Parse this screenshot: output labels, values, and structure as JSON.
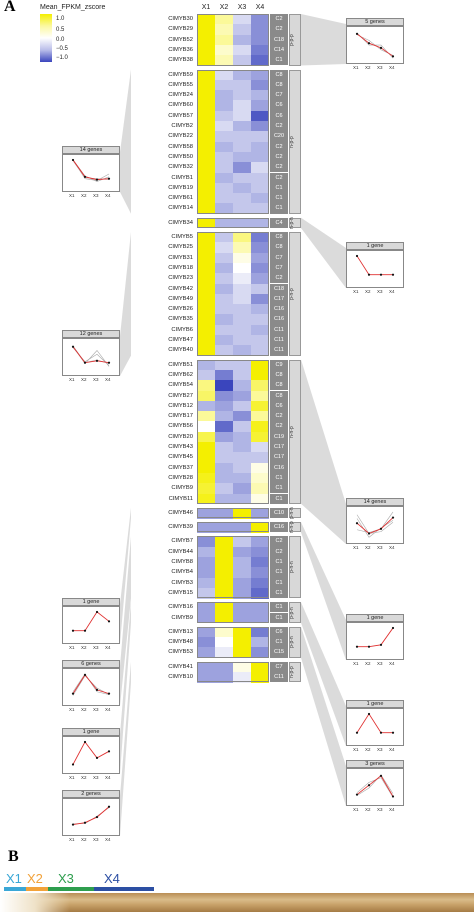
{
  "panel_a": "A",
  "panel_b": "B",
  "legend": {
    "title": "Mean_FPKM_zscore",
    "ticks": [
      "1.0",
      "0.5",
      "0.0",
      "−0.5",
      "−1.0"
    ]
  },
  "columns": [
    "X1",
    "X2",
    "X3",
    "X4"
  ],
  "colors": {
    "high": "#f4ef00",
    "mid": "#ffffff",
    "low": "#3a45bd",
    "clade_band": "#8a8a8a",
    "highlight": "#e03030"
  },
  "rows": [
    {
      "gene": "CIMYB30",
      "clade": "C2",
      "z": [
        1,
        0.4,
        -0.2,
        -0.6
      ]
    },
    {
      "gene": "CIMYB29",
      "clade": "C2",
      "z": [
        1,
        0.3,
        -0.3,
        -0.6
      ]
    },
    {
      "gene": "CIMYB52",
      "clade": "C18",
      "z": [
        1,
        0.4,
        -0.4,
        -0.6
      ]
    },
    {
      "gene": "CIMYB36",
      "clade": "C14",
      "z": [
        1,
        0.2,
        -0.2,
        -0.7
      ]
    },
    {
      "gene": "CIMYB38",
      "clade": "C1",
      "z": [
        1,
        0.3,
        -0.3,
        -0.8
      ]
    },
    {
      "gene": "CIMYB59",
      "clade": "C8",
      "z": [
        1,
        -0.2,
        -0.4,
        -0.5
      ]
    },
    {
      "gene": "CIMYB55",
      "clade": "C8",
      "z": [
        1,
        -0.3,
        -0.3,
        -0.6
      ]
    },
    {
      "gene": "CIMYB24",
      "clade": "C7",
      "z": [
        1,
        -0.4,
        -0.3,
        -0.4
      ]
    },
    {
      "gene": "CIMYB60",
      "clade": "C6",
      "z": [
        1,
        -0.4,
        -0.2,
        -0.5
      ]
    },
    {
      "gene": "CIMYB57",
      "clade": "C6",
      "z": [
        1,
        -0.3,
        -0.2,
        -0.9
      ]
    },
    {
      "gene": "CIMYB2",
      "clade": "C2",
      "z": [
        1,
        -0.2,
        -0.4,
        -0.6
      ]
    },
    {
      "gene": "CIMYB22",
      "clade": "C20",
      "z": [
        1,
        -0.3,
        -0.3,
        -0.3
      ]
    },
    {
      "gene": "CIMYB58",
      "clade": "C2",
      "z": [
        1,
        -0.4,
        -0.3,
        -0.4
      ]
    },
    {
      "gene": "CIMYB50",
      "clade": "C2",
      "z": [
        1,
        -0.3,
        -0.4,
        -0.4
      ]
    },
    {
      "gene": "CIMYB32",
      "clade": "C2",
      "z": [
        1,
        -0.3,
        -0.6,
        -0.2
      ]
    },
    {
      "gene": "CIMYB1",
      "clade": "C2",
      "z": [
        1,
        -0.4,
        -0.3,
        -0.3
      ]
    },
    {
      "gene": "CIMYB19",
      "clade": "C1",
      "z": [
        1,
        -0.3,
        -0.4,
        -0.3
      ]
    },
    {
      "gene": "CIMYB61",
      "clade": "C1",
      "z": [
        1,
        -0.3,
        -0.3,
        -0.4
      ]
    },
    {
      "gene": "CIMYB14",
      "clade": "C1",
      "z": [
        1,
        -0.4,
        -0.3,
        -0.3
      ]
    },
    {
      "gene": "CIMYB34",
      "clade": "C4",
      "z": [
        1,
        -0.4,
        -0.4,
        -0.4
      ]
    },
    {
      "gene": "CIMYB5",
      "clade": "C8",
      "z": [
        1,
        -0.3,
        0.5,
        -0.7
      ]
    },
    {
      "gene": "CIMYB25",
      "clade": "C8",
      "z": [
        1,
        -0.2,
        0.3,
        -0.6
      ]
    },
    {
      "gene": "CIMYB31",
      "clade": "C7",
      "z": [
        1,
        -0.3,
        0.1,
        -0.5
      ]
    },
    {
      "gene": "CIMYB18",
      "clade": "C7",
      "z": [
        1,
        -0.4,
        0.0,
        -0.6
      ]
    },
    {
      "gene": "CIMYB23",
      "clade": "C2",
      "z": [
        1,
        -0.3,
        -0.1,
        -0.5
      ]
    },
    {
      "gene": "CIMYB42",
      "clade": "C18",
      "z": [
        1,
        -0.4,
        -0.2,
        -0.3
      ]
    },
    {
      "gene": "CIMYB49",
      "clade": "C17",
      "z": [
        1,
        -0.3,
        -0.2,
        -0.6
      ]
    },
    {
      "gene": "CIMYB26",
      "clade": "C16",
      "z": [
        1,
        -0.3,
        -0.3,
        -0.4
      ]
    },
    {
      "gene": "CIMYB35",
      "clade": "C16",
      "z": [
        1,
        -0.4,
        -0.3,
        -0.3
      ]
    },
    {
      "gene": "CIMYB6",
      "clade": "C11",
      "z": [
        1,
        -0.3,
        -0.3,
        -0.4
      ]
    },
    {
      "gene": "CIMYB47",
      "clade": "C11",
      "z": [
        1,
        -0.4,
        -0.3,
        -0.3
      ]
    },
    {
      "gene": "CIMYB40",
      "clade": "C11",
      "z": [
        1,
        -0.3,
        -0.4,
        -0.3
      ]
    },
    {
      "gene": "CIMYB51",
      "clade": "C9",
      "z": [
        -0.4,
        -0.3,
        -0.3,
        1
      ]
    },
    {
      "gene": "CIMYB62",
      "clade": "C8",
      "z": [
        -0.3,
        -0.7,
        -0.3,
        1
      ]
    },
    {
      "gene": "CIMYB54",
      "clade": "C8",
      "z": [
        0.5,
        -1,
        -0.4,
        0.6
      ]
    },
    {
      "gene": "CIMYB27",
      "clade": "C8",
      "z": [
        0.6,
        -0.6,
        -0.5,
        0.4
      ]
    },
    {
      "gene": "CIMYB12",
      "clade": "C6",
      "z": [
        -0.4,
        -0.5,
        -0.3,
        0.8
      ]
    },
    {
      "gene": "CIMYB17",
      "clade": "C2",
      "z": [
        0.4,
        -0.4,
        -0.6,
        0.4
      ]
    },
    {
      "gene": "CIMYB56",
      "clade": "C2",
      "z": [
        0.0,
        -0.8,
        -0.3,
        0.9
      ]
    },
    {
      "gene": "CIMYB20",
      "clade": "C19",
      "z": [
        0.7,
        -0.5,
        -0.4,
        0.8
      ]
    },
    {
      "gene": "CIMYB43",
      "clade": "C17",
      "z": [
        1,
        -0.3,
        -0.4,
        -0.2
      ]
    },
    {
      "gene": "CIMYB45",
      "clade": "C17",
      "z": [
        1,
        -0.3,
        -0.3,
        -0.3
      ]
    },
    {
      "gene": "CIMYB37",
      "clade": "C16",
      "z": [
        1,
        -0.4,
        -0.3,
        0.1
      ]
    },
    {
      "gene": "CIMYB28",
      "clade": "C1",
      "z": [
        0.9,
        -0.4,
        -0.4,
        0.2
      ]
    },
    {
      "gene": "CIMYB9",
      "clade": "C1",
      "z": [
        0.8,
        -0.3,
        -0.5,
        0.3
      ]
    },
    {
      "gene": "CIMYB11",
      "clade": "C1",
      "z": [
        0.9,
        -0.4,
        -0.4,
        0.1
      ]
    },
    {
      "gene": "CIMYB46",
      "clade": "C10",
      "z": [
        -0.5,
        -0.5,
        1,
        -0.5
      ]
    },
    {
      "gene": "CIMYB39",
      "clade": "C16",
      "z": [
        -0.5,
        -0.5,
        -0.5,
        1
      ]
    },
    {
      "gene": "CIMYB7",
      "clade": "C2",
      "z": [
        -0.6,
        1,
        -0.3,
        -0.5
      ]
    },
    {
      "gene": "CIMYB44",
      "clade": "C2",
      "z": [
        -0.4,
        1,
        -0.5,
        -0.6
      ]
    },
    {
      "gene": "CIMYB8",
      "clade": "C1",
      "z": [
        -0.5,
        1,
        -0.4,
        -0.7
      ]
    },
    {
      "gene": "CIMYB4",
      "clade": "C1",
      "z": [
        -0.5,
        1,
        -0.4,
        -0.6
      ]
    },
    {
      "gene": "CIMYB3",
      "clade": "C1",
      "z": [
        -0.4,
        1,
        -0.5,
        -0.7
      ]
    },
    {
      "gene": "CIMYB15",
      "clade": "C1",
      "z": [
        -0.3,
        1,
        -0.5,
        -0.8
      ]
    },
    {
      "gene": "CIMYB16",
      "clade": "C1",
      "z": [
        -0.5,
        1,
        -0.5,
        -0.5
      ]
    },
    {
      "gene": "CIMYB9",
      "clade": "C1",
      "z": [
        -0.5,
        1,
        -0.5,
        -0.5
      ]
    },
    {
      "gene": "CIMYB13",
      "clade": "C6",
      "z": [
        -0.5,
        0.2,
        1,
        -0.7
      ]
    },
    {
      "gene": "CIMYB48",
      "clade": "C1",
      "z": [
        -0.6,
        0.0,
        1,
        -0.4
      ]
    },
    {
      "gene": "CIMYB53",
      "clade": "C15",
      "z": [
        -0.5,
        -0.1,
        1,
        -0.6
      ]
    },
    {
      "gene": "CIMYB41",
      "clade": "C7",
      "z": [
        -0.5,
        -0.5,
        0.1,
        1
      ]
    },
    {
      "gene": "CIMYB10",
      "clade": "C11",
      "z": [
        -0.5,
        -0.5,
        -0.1,
        1
      ]
    }
  ],
  "groups": [
    {
      "pattern": "p-p-p",
      "start": 0,
      "count": 5
    },
    {
      "pattern": "n-p-p",
      "start": 5,
      "count": 14
    },
    {
      "pattern": "n-p-n",
      "start": 19,
      "count": 1
    },
    {
      "pattern": "p-n-p",
      "start": 20,
      "count": 12
    },
    {
      "pattern": "n-n-p",
      "start": 32,
      "count": 14
    },
    {
      "pattern": "p-n-n",
      "start": 46,
      "count": 1
    },
    {
      "pattern": "n-n-p",
      "start": 47,
      "count": 1
    },
    {
      "pattern": "p-n-n",
      "start": 48,
      "count": 6
    },
    {
      "pattern": "p-p-n",
      "start": 54,
      "count": 2
    },
    {
      "pattern": "p-p-n",
      "start": 56,
      "count": 3
    },
    {
      "pattern": "n-p-p",
      "start": 59,
      "count": 2
    }
  ],
  "mini_plots": [
    {
      "title": "5 genes",
      "side": "right",
      "group": 0,
      "mean": [
        1.3,
        0.3,
        -0.2,
        -1.1
      ],
      "others": [
        [
          1.2,
          0.6,
          -0.4,
          -1.0
        ],
        [
          1.4,
          0.1,
          0.1,
          -1.3
        ]
      ]
    },
    {
      "title": "14 genes",
      "side": "left",
      "group": 1,
      "mean": [
        1.5,
        -0.3,
        -0.6,
        -0.5
      ],
      "others": [
        [
          1.5,
          -0.2,
          -0.8,
          -0.3
        ],
        [
          1.4,
          -0.4,
          -0.5,
          -0.6
        ],
        [
          1.5,
          -0.5,
          -0.7,
          0.0
        ]
      ]
    },
    {
      "title": "1 gene",
      "side": "right",
      "group": 2,
      "mean": [
        1.5,
        -0.5,
        -0.5,
        -0.5
      ],
      "others": []
    },
    {
      "title": "12 genes",
      "side": "left",
      "group": 3,
      "mean": [
        1.2,
        -0.5,
        -0.3,
        -0.5
      ],
      "others": [
        [
          1.2,
          -0.6,
          0.8,
          -0.9
        ],
        [
          1.1,
          -0.4,
          0.4,
          -0.8
        ],
        [
          1.3,
          -0.5,
          -0.2,
          -0.6
        ]
      ]
    },
    {
      "title": "14 genes",
      "side": "right",
      "group": 4,
      "mean": [
        0.3,
        -0.8,
        -0.3,
        0.9
      ],
      "others": [
        [
          1.2,
          -0.8,
          -0.6,
          0.4
        ],
        [
          -0.4,
          -0.7,
          -0.3,
          1.5
        ],
        [
          0.8,
          -1.2,
          -0.2,
          0.6
        ]
      ]
    },
    {
      "title": "1 gene",
      "side": "left",
      "group": 5,
      "mean": [
        -0.5,
        -0.5,
        1.5,
        0.5
      ],
      "others": []
    },
    {
      "title": "1 gene",
      "side": "right",
      "group": 6,
      "mean": [
        -0.5,
        -0.5,
        -0.3,
        1.5
      ],
      "others": []
    },
    {
      "title": "6 genes",
      "side": "left",
      "group": 7,
      "mean": [
        -0.6,
        1.4,
        -0.2,
        -0.6
      ],
      "others": [
        [
          -0.8,
          1.3,
          0.0,
          -0.7
        ],
        [
          -0.4,
          1.5,
          -0.4,
          -0.7
        ]
      ]
    },
    {
      "title": "1 gene",
      "side": "right",
      "group": 8,
      "mean": [
        -0.5,
        1.5,
        -0.5,
        -0.5
      ],
      "others": []
    },
    {
      "title": "1 gene",
      "side": "left",
      "group": 8,
      "mean": [
        -0.9,
        1.5,
        -0.2,
        0.5
      ],
      "others": []
    },
    {
      "title": "3 genes",
      "side": "right",
      "group": 9,
      "mean": [
        -0.7,
        0.3,
        1.3,
        -0.9
      ],
      "others": [
        [
          -0.5,
          0.6,
          1.1,
          -1.0
        ],
        [
          -0.8,
          0.0,
          1.4,
          -0.6
        ]
      ]
    },
    {
      "title": "2 genes",
      "side": "left",
      "group": 10,
      "mean": [
        -0.7,
        -0.5,
        0.1,
        1.2
      ],
      "others": [
        [
          -0.6,
          -0.6,
          0.2,
          1.1
        ]
      ]
    }
  ],
  "stages": [
    "X1",
    "X2",
    "X3",
    "X4"
  ],
  "stage_colors": [
    "#3aa7d6",
    "#f2a23a",
    "#2e9e4e",
    "#2c4fa3"
  ]
}
